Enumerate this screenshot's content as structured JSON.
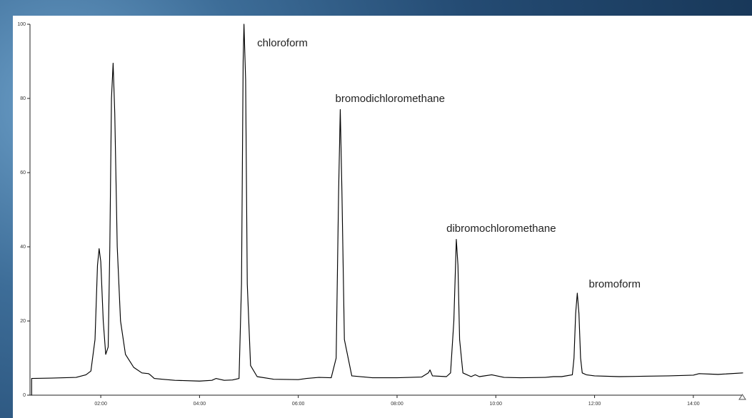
{
  "chart_data": {
    "type": "line",
    "title": "",
    "xlabel": "",
    "ylabel": "",
    "xlim": [
      "00:34",
      "15:00"
    ],
    "ylim": [
      0,
      100
    ],
    "grid": false,
    "x_ticks": [
      "02:00",
      "04:00",
      "06:00",
      "08:00",
      "10:00",
      "12:00",
      "14:00"
    ],
    "y_ticks": [
      "0",
      "20",
      "40",
      "60",
      "80",
      "100"
    ],
    "annotations": [
      {
        "text": "chloroform",
        "x": "05:10",
        "y": 94
      },
      {
        "text": "bromodichloromethane",
        "x": "06:45",
        "y": 79
      },
      {
        "text": "dibromochloromethane",
        "x": "09:00",
        "y": 44
      },
      {
        "text": "bromoform",
        "x": "11:53",
        "y": 29
      }
    ],
    "series": [
      {
        "values": [
          [
            "00:36",
            0
          ],
          [
            "00:36",
            4.5
          ],
          [
            "01:00",
            4.6
          ],
          [
            "01:30",
            4.8
          ],
          [
            "01:42",
            5.5
          ],
          [
            "01:48",
            6.5
          ],
          [
            "01:53",
            15
          ],
          [
            "01:56",
            35
          ],
          [
            "01:58",
            39.5
          ],
          [
            "02:00",
            36
          ],
          [
            "02:03",
            20
          ],
          [
            "02:06",
            11
          ],
          [
            "02:09",
            13
          ],
          [
            "02:11",
            40
          ],
          [
            "02:13",
            80
          ],
          [
            "02:15",
            89.5
          ],
          [
            "02:17",
            76
          ],
          [
            "02:20",
            40
          ],
          [
            "02:24",
            20
          ],
          [
            "02:30",
            11
          ],
          [
            "02:40",
            7.5
          ],
          [
            "02:50",
            6
          ],
          [
            "02:58",
            5.8
          ],
          [
            "03:00",
            5.5
          ],
          [
            "03:05",
            4.5
          ],
          [
            "03:15",
            4.3
          ],
          [
            "03:30",
            4.0
          ],
          [
            "04:00",
            3.8
          ],
          [
            "04:15",
            4.0
          ],
          [
            "04:20",
            4.5
          ],
          [
            "04:30",
            4.0
          ],
          [
            "04:40",
            4.1
          ],
          [
            "04:48",
            4.5
          ],
          [
            "04:51",
            30
          ],
          [
            "04:53",
            90
          ],
          [
            "04:54",
            100
          ],
          [
            "04:56",
            85
          ],
          [
            "04:58",
            30
          ],
          [
            "05:02",
            8
          ],
          [
            "05:10",
            5
          ],
          [
            "05:30",
            4.3
          ],
          [
            "06:00",
            4.2
          ],
          [
            "06:10",
            4.5
          ],
          [
            "06:25",
            4.8
          ],
          [
            "06:40",
            4.7
          ],
          [
            "06:46",
            10
          ],
          [
            "06:49",
            55
          ],
          [
            "06:51",
            77
          ],
          [
            "06:53",
            55
          ],
          [
            "06:56",
            15
          ],
          [
            "07:05",
            5.2
          ],
          [
            "07:30",
            4.7
          ],
          [
            "08:00",
            4.7
          ],
          [
            "08:30",
            4.9
          ],
          [
            "08:38",
            6.0
          ],
          [
            "08:40",
            6.8
          ],
          [
            "08:43",
            5.2
          ],
          [
            "09:00",
            5.0
          ],
          [
            "09:05",
            6.0
          ],
          [
            "09:09",
            20
          ],
          [
            "09:12",
            42
          ],
          [
            "09:14",
            35
          ],
          [
            "09:16",
            15
          ],
          [
            "09:20",
            6.0
          ],
          [
            "09:30",
            5.0
          ],
          [
            "09:35",
            5.5
          ],
          [
            "09:40",
            5.0
          ],
          [
            "09:55",
            5.5
          ],
          [
            "10:10",
            4.8
          ],
          [
            "10:30",
            4.7
          ],
          [
            "11:00",
            4.8
          ],
          [
            "11:10",
            5.0
          ],
          [
            "11:20",
            5.0
          ],
          [
            "11:33",
            5.5
          ],
          [
            "11:35",
            10
          ],
          [
            "11:37",
            22
          ],
          [
            "11:39",
            27.5
          ],
          [
            "11:41",
            22
          ],
          [
            "11:43",
            10
          ],
          [
            "11:45",
            6
          ],
          [
            "11:50",
            5.5
          ],
          [
            "12:00",
            5.2
          ],
          [
            "12:30",
            5.0
          ],
          [
            "13:00",
            5.1
          ],
          [
            "13:30",
            5.2
          ],
          [
            "14:00",
            5.4
          ],
          [
            "14:07",
            5.8
          ],
          [
            "14:30",
            5.6
          ],
          [
            "15:00",
            6.0
          ]
        ]
      }
    ]
  }
}
